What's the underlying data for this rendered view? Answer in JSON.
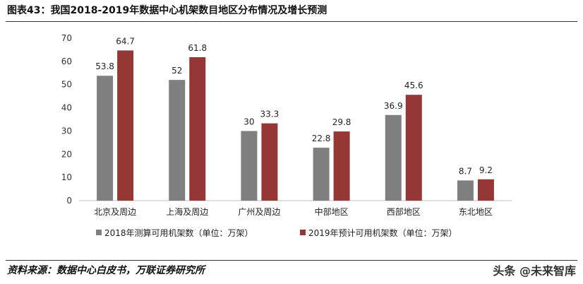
{
  "page": {
    "title": "图表43：我国2018-2019年数据中心机架数目地区分布情况及增长预测",
    "source": "资料来源：数据中心白皮书，万联证券研究所",
    "watermark": "头条 @未来智库"
  },
  "chart_data": {
    "type": "bar",
    "categories": [
      "北京及周边",
      "上海及周边",
      "广州及周边",
      "中部地区",
      "西部地区",
      "东北地区"
    ],
    "series": [
      {
        "name": "2018年测算可用机架数（单位：万架）",
        "values": [
          53.8,
          52,
          30,
          22.8,
          36.9,
          8.7
        ],
        "labels": [
          "53.8",
          "52",
          "30",
          "22.8",
          "36.9",
          "8.7"
        ],
        "color": "#7f7f7f"
      },
      {
        "name": "2019年预计可用机架数（单位：万架）",
        "values": [
          64.7,
          61.8,
          33.3,
          29.8,
          45.6,
          9.2
        ],
        "labels": [
          "64.7",
          "61.8",
          "33.3",
          "29.8",
          "45.6",
          "9.2"
        ],
        "color": "#953735"
      }
    ],
    "ylim": [
      0,
      70
    ],
    "yticks": [
      0,
      10,
      20,
      30,
      40,
      50,
      60,
      70
    ],
    "grid": false,
    "legend": "bottom"
  }
}
